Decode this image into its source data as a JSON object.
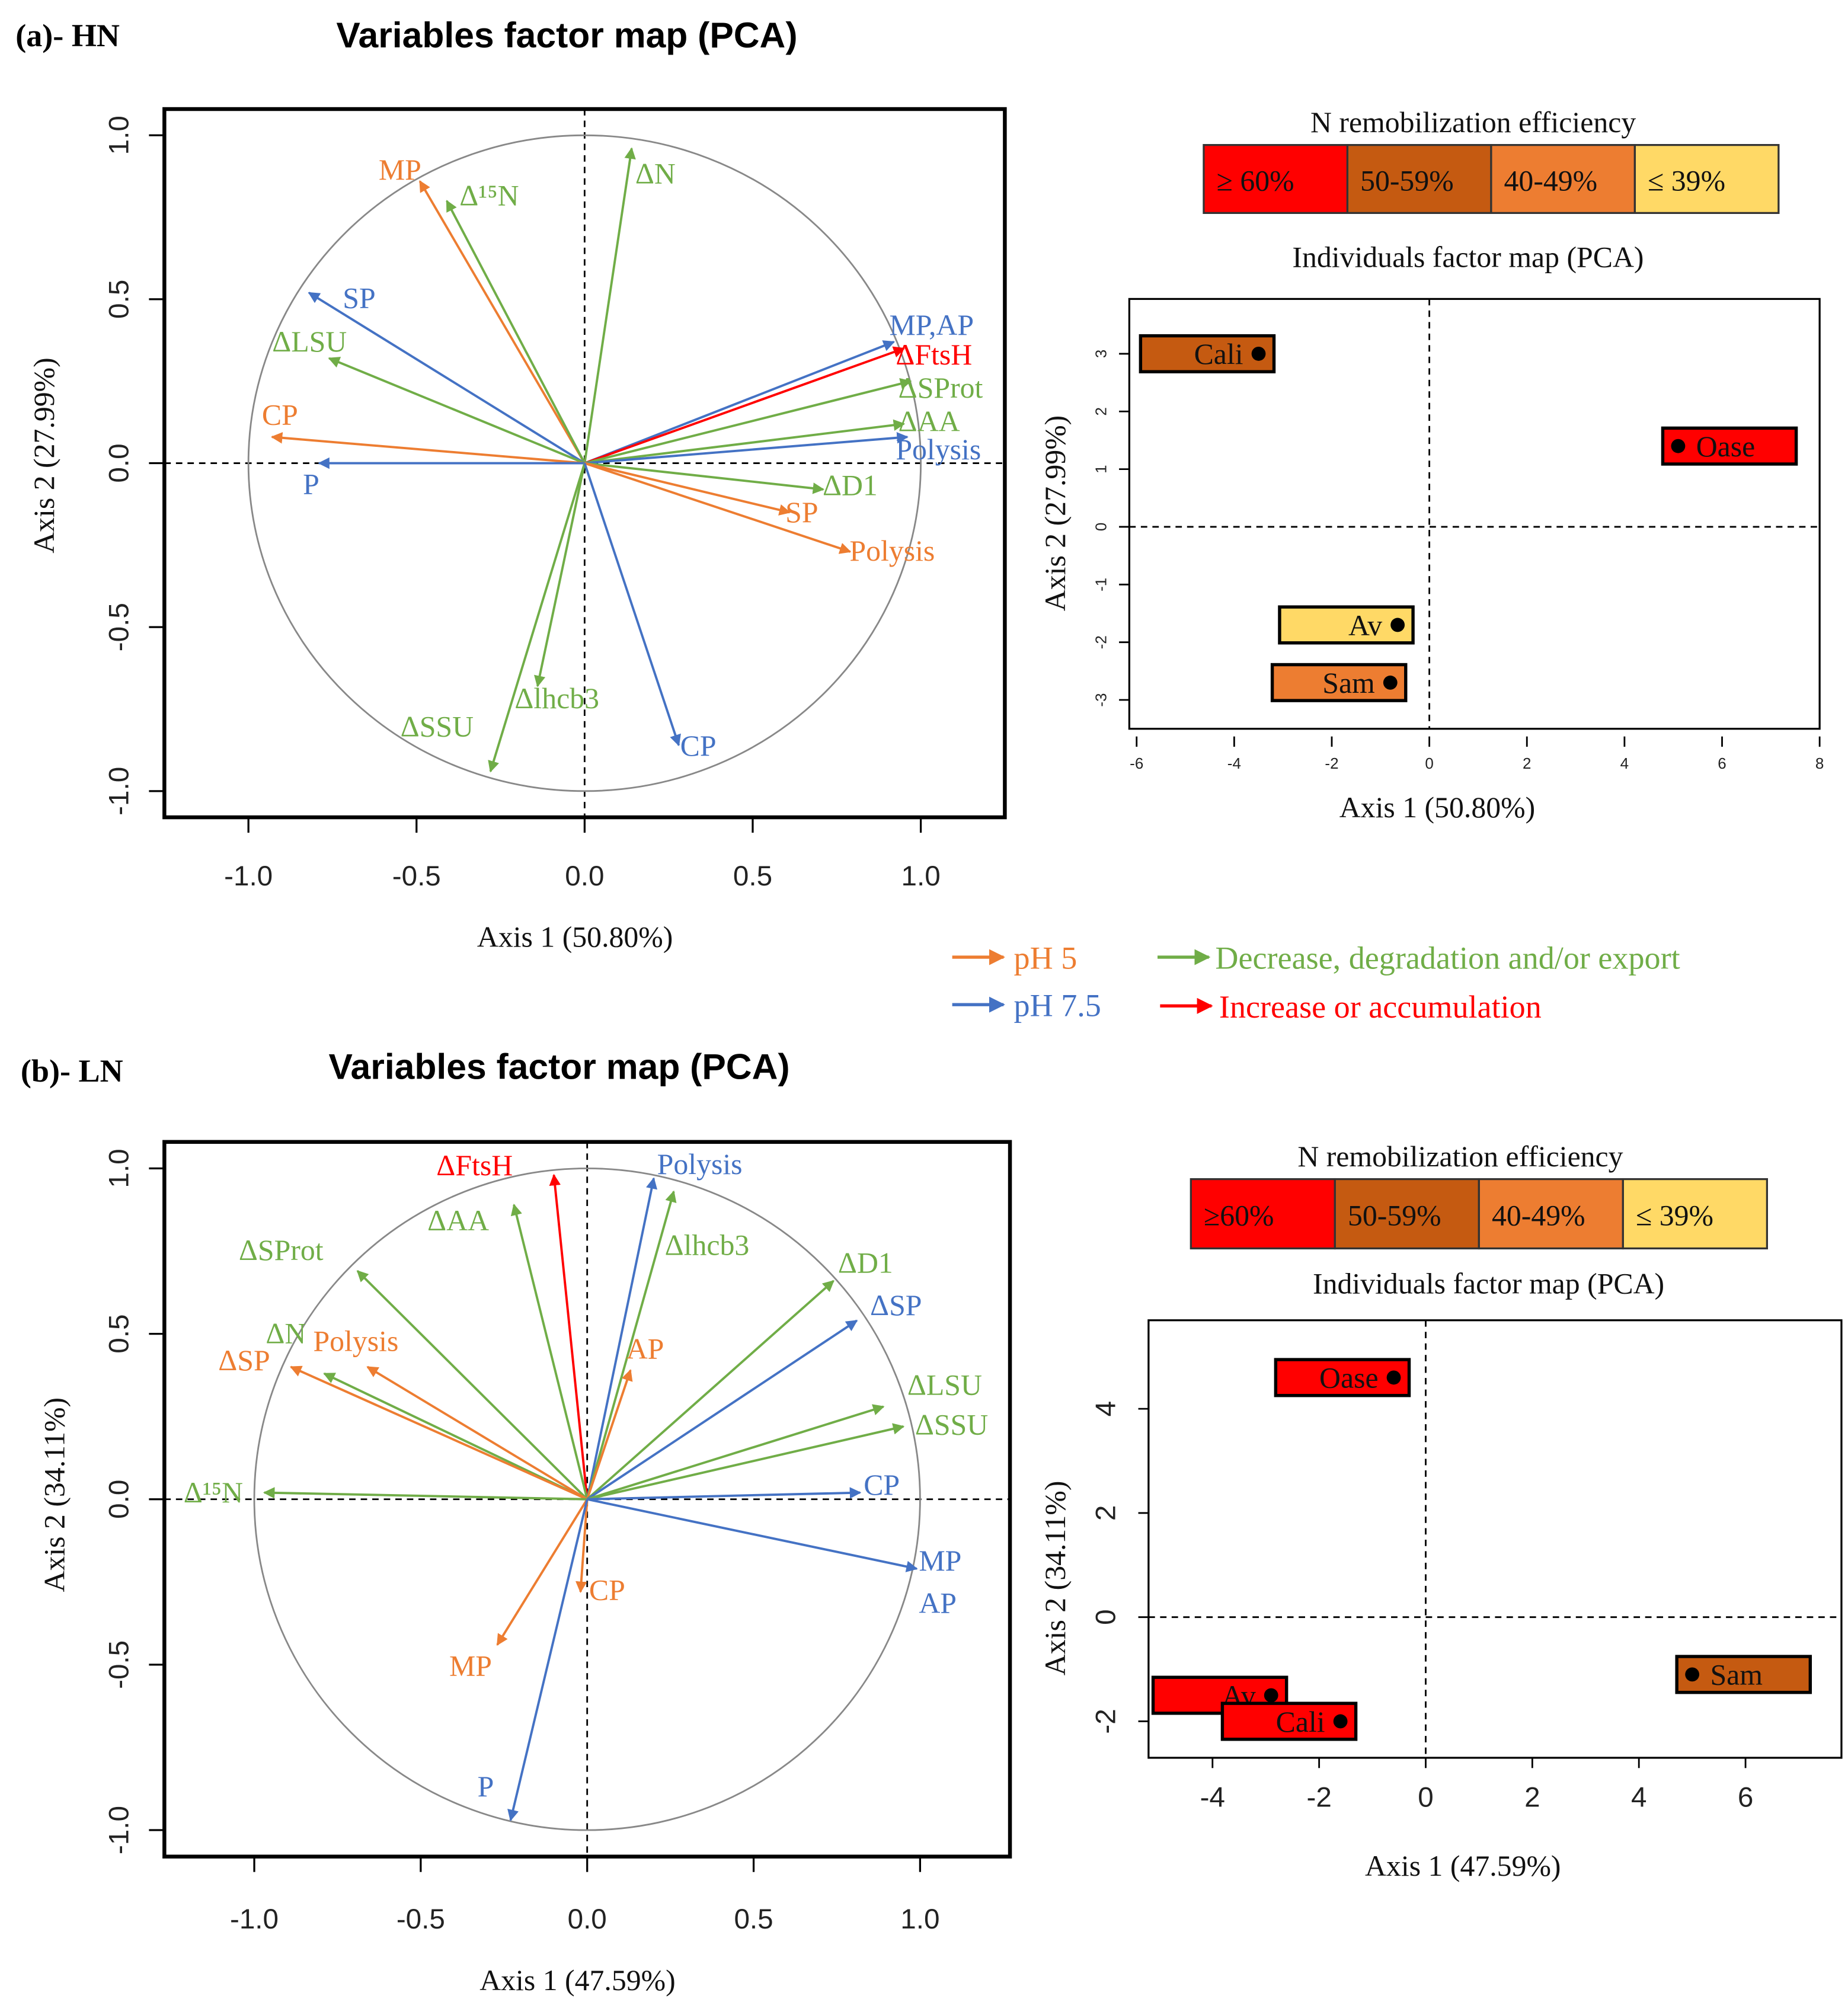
{
  "colors": {
    "pH5": "#ED7D31",
    "pH75": "#4472C4",
    "decrease": "#70AD47",
    "increase": "#FF0000",
    "class_ge60": "#FF0000",
    "class_50_59": "#C55A11",
    "class_40_49": "#ED7D31",
    "class_le39": "#FFD966"
  },
  "legend": {
    "pH5": "pH 5",
    "pH75": "pH 7.5",
    "decrease": "Decrease, degradation and/or export",
    "increase": "Increase or accumulation"
  },
  "chart_data": [
    {
      "type": "scatter",
      "panel": "(a)- HN",
      "title": "Variables factor map (PCA)",
      "xlabel": "Axis 1 (50.80%)",
      "ylabel": "Axis 2 (27.99%)",
      "xlim": [
        -1.25,
        1.25
      ],
      "ylim": [
        -1.08,
        1.08
      ],
      "xticks": [
        "-1.0",
        "-0.5",
        "0.0",
        "0.5",
        "1.0"
      ],
      "yticks": [
        "-1.0",
        "-0.5",
        "0.0",
        "0.5",
        "1.0"
      ],
      "vectors": [
        {
          "label": "MP",
          "group": "pH5",
          "x": -0.49,
          "y": 0.86
        },
        {
          "label": "Δ¹⁵N",
          "group": "decrease",
          "x": -0.41,
          "y": 0.8
        },
        {
          "label": "ΔN",
          "group": "decrease",
          "x": 0.14,
          "y": 0.96
        },
        {
          "label": "SP",
          "group": "pH75",
          "x": -0.82,
          "y": 0.52
        },
        {
          "label": "ΔLSU",
          "group": "decrease",
          "x": -0.76,
          "y": 0.32
        },
        {
          "label": "CP",
          "group": "pH5",
          "x": -0.93,
          "y": 0.08
        },
        {
          "label": "P",
          "group": "pH75",
          "x": -0.79,
          "y": 0.0
        },
        {
          "label": "MP,AP",
          "group": "pH75",
          "x": 0.92,
          "y": 0.37
        },
        {
          "label": "ΔFtsH",
          "group": "increase",
          "x": 0.95,
          "y": 0.35
        },
        {
          "label": "ΔSProt",
          "group": "decrease",
          "x": 0.97,
          "y": 0.25
        },
        {
          "label": "ΔAA",
          "group": "decrease",
          "x": 0.95,
          "y": 0.12
        },
        {
          "label": "Polysis",
          "group": "pH75",
          "x": 0.96,
          "y": 0.08
        },
        {
          "label": "ΔD1",
          "group": "decrease",
          "x": 0.71,
          "y": -0.08
        },
        {
          "label": "SP",
          "group": "pH5",
          "x": 0.61,
          "y": -0.15
        },
        {
          "label": "Polysis",
          "group": "pH5",
          "x": 0.79,
          "y": -0.27
        },
        {
          "label": "Δlhcb3",
          "group": "decrease",
          "x": -0.14,
          "y": -0.68
        },
        {
          "label": "ΔSSU",
          "group": "decrease",
          "x": -0.28,
          "y": -0.94
        },
        {
          "label": "CP",
          "group": "pH75",
          "x": 0.28,
          "y": -0.86
        }
      ]
    },
    {
      "type": "scatter",
      "title": "Individuals factor map (PCA)",
      "legend_title": "N remobilization  efficiency",
      "classes": [
        {
          "label": "≥ 60%",
          "key": "class_ge60"
        },
        {
          "label": "50-59%",
          "key": "class_50_59"
        },
        {
          "label": "40-49%",
          "key": "class_40_49"
        },
        {
          "label": "≤ 39%",
          "key": "class_le39"
        }
      ],
      "xlabel": "Axis 1 (50.80%)",
      "ylabel": "Axis 2 (27.99%)",
      "xlim": [
        -6.15,
        8
      ],
      "ylim": [
        -3.5,
        3.95
      ],
      "xticks": [
        -6,
        -4,
        -2,
        0,
        2,
        4,
        6,
        8
      ],
      "yticks": [
        -3,
        -2,
        -1,
        0,
        1,
        2,
        3
      ],
      "points": [
        {
          "label": "Cali",
          "x": -3.5,
          "y": 3.0,
          "class": "class_50_59",
          "side": "left"
        },
        {
          "label": "Oase",
          "x": 5.1,
          "y": 1.4,
          "class": "class_ge60",
          "side": "right"
        },
        {
          "label": "Av",
          "x": -0.65,
          "y": -1.7,
          "class": "class_le39",
          "side": "left"
        },
        {
          "label": "Sam",
          "x": -0.8,
          "y": -2.7,
          "class": "class_40_49",
          "side": "left"
        }
      ]
    },
    {
      "type": "scatter",
      "panel": "(b)- LN",
      "title": "Variables factor map (PCA)",
      "xlabel": "Axis 1 (47.59%)",
      "ylabel": "Axis 2 (34.11%)",
      "xlim": [
        -1.27,
        1.27
      ],
      "ylim": [
        -1.08,
        1.08
      ],
      "xticks": [
        "-1.0",
        "-0.5",
        "0.0",
        "0.5",
        "1.0"
      ],
      "yticks": [
        "-1.0",
        "-0.5",
        "0.0",
        "0.5",
        "1.0"
      ],
      "vectors": [
        {
          "label": "ΔFtsH",
          "group": "increase",
          "x": -0.1,
          "y": 0.98
        },
        {
          "label": "ΔAA",
          "group": "decrease",
          "x": -0.22,
          "y": 0.89
        },
        {
          "label": "Polysis",
          "group": "pH75",
          "x": 0.2,
          "y": 0.97
        },
        {
          "label": "Δlhcb3",
          "group": "decrease",
          "x": 0.26,
          "y": 0.93
        },
        {
          "label": "ΔSProt",
          "group": "decrease",
          "x": -0.69,
          "y": 0.69
        },
        {
          "label": "ΔN",
          "group": "decrease",
          "x": -0.79,
          "y": 0.38
        },
        {
          "label": "Polysis",
          "group": "pH5",
          "x": -0.66,
          "y": 0.4
        },
        {
          "label": "ΔSP",
          "group": "pH5",
          "x": -0.89,
          "y": 0.4
        },
        {
          "label": "Δ¹⁵N",
          "group": "decrease",
          "x": -0.97,
          "y": 0.02
        },
        {
          "label": "AP",
          "group": "pH5",
          "x": 0.13,
          "y": 0.39
        },
        {
          "label": "ΔD1",
          "group": "decrease",
          "x": 0.74,
          "y": 0.66
        },
        {
          "label": "ΔSP",
          "group": "pH75",
          "x": 0.81,
          "y": 0.54
        },
        {
          "label": "ΔLSU",
          "group": "decrease",
          "x": 0.89,
          "y": 0.28
        },
        {
          "label": "ΔSSU",
          "group": "decrease",
          "x": 0.95,
          "y": 0.22
        },
        {
          "label": "CP",
          "group": "pH75",
          "x": 0.82,
          "y": 0.02
        },
        {
          "label": "MP",
          "group": "pH75",
          "x": 0.99,
          "y": -0.21,
          "label2": "AP"
        },
        {
          "label": "CP",
          "group": "pH5",
          "x": -0.02,
          "y": -0.28
        },
        {
          "label": "MP",
          "group": "pH5",
          "x": -0.27,
          "y": -0.44
        },
        {
          "label": "P",
          "group": "pH75",
          "x": -0.23,
          "y": -0.97
        }
      ]
    },
    {
      "type": "scatter",
      "title": "Individuals factor map (PCA)",
      "legend_title": "N remobilization  efficiency",
      "classes": [
        {
          "label": "≥60%",
          "key": "class_ge60"
        },
        {
          "label": "50-59%",
          "key": "class_50_59"
        },
        {
          "label": "40-49%",
          "key": "class_40_49"
        },
        {
          "label": "≤  39%",
          "key": "class_le39"
        }
      ],
      "xlabel": "Axis 1 (47.59%)",
      "ylabel": "Axis 2 (34.11%)",
      "xlim": [
        -5.2,
        7.8
      ],
      "ylim": [
        -2.7,
        5.7
      ],
      "xticks": [
        -4,
        -2,
        0,
        2,
        4,
        6
      ],
      "yticks": [
        -2,
        0,
        2,
        4
      ],
      "points": [
        {
          "label": "Oase",
          "x": -0.6,
          "y": 4.6,
          "class": "class_ge60",
          "side": "left"
        },
        {
          "label": "Av",
          "x": -2.9,
          "y": -1.5,
          "class": "class_ge60",
          "side": "left"
        },
        {
          "label": "Cali",
          "x": -1.6,
          "y": -2.0,
          "class": "class_ge60",
          "side": "left"
        },
        {
          "label": "Sam",
          "x": 5.0,
          "y": -1.1,
          "class": "class_50_59",
          "side": "right"
        }
      ]
    }
  ]
}
